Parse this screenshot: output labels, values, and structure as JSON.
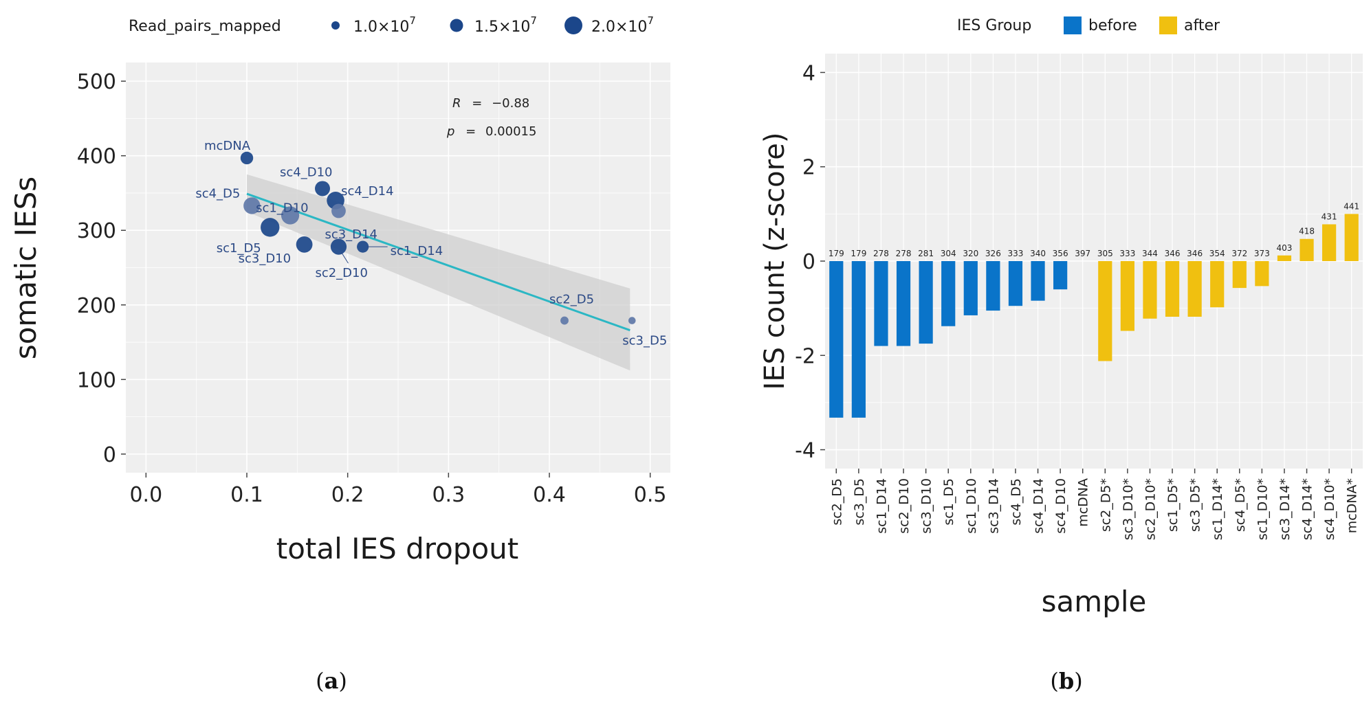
{
  "figure": {
    "caption_a": "a",
    "caption_b": "b"
  },
  "chart_data": [
    {
      "type": "scatter",
      "xlabel": "total IES dropout",
      "ylabel": "somatic IESs",
      "xlim": [
        -0.02,
        0.52
      ],
      "ylim": [
        -25,
        525
      ],
      "xticks": [
        0.0,
        0.1,
        0.2,
        0.3,
        0.4,
        0.5
      ],
      "xtick_labels": [
        "0.0",
        "0.1",
        "0.2",
        "0.3",
        "0.4",
        "0.5"
      ],
      "yticks": [
        0,
        100,
        200,
        300,
        400,
        500
      ],
      "ytick_labels": [
        "0",
        "100",
        "200",
        "300",
        "400",
        "500"
      ],
      "grid": true,
      "size_legend": {
        "title": "Read_pairs_mapped",
        "entries": [
          {
            "label": "1.0×10",
            "sup": "7",
            "value": 10000000
          },
          {
            "label": "1.5×10",
            "sup": "7",
            "value": 15000000
          },
          {
            "label": "2.0×10",
            "sup": "7",
            "value": 20000000
          }
        ],
        "placement": "top"
      },
      "annotations": {
        "r_label": "R",
        "r_value": "−0.88",
        "p_label": "p",
        "p_value": "0.00015"
      },
      "regression": {
        "x": [
          0.1,
          0.48
        ],
        "y": [
          349,
          166
        ],
        "ci_low": [
          325,
          112
        ],
        "ci_high": [
          375,
          222
        ],
        "color": "#2bb7c4"
      },
      "points": [
        {
          "label": "mcDNA",
          "x": 0.1,
          "y": 397,
          "size": 13000000
        },
        {
          "label": "sc4_D10",
          "x": 0.175,
          "y": 356,
          "size": 16000000
        },
        {
          "label": "sc4_D5",
          "x": 0.105,
          "y": 333,
          "size": 18000000
        },
        {
          "label": "sc1_D10",
          "x": 0.143,
          "y": 320,
          "size": 19500000
        },
        {
          "label": "sc4_D14",
          "x": 0.188,
          "y": 340,
          "size": 19000000
        },
        {
          "label": "sc3_D14",
          "x": 0.191,
          "y": 326,
          "size": 15000000
        },
        {
          "label": "sc1_D5",
          "x": 0.123,
          "y": 304,
          "size": 20500000
        },
        {
          "label": "sc3_D10",
          "x": 0.157,
          "y": 281,
          "size": 17500000
        },
        {
          "label": "sc2_D10",
          "x": 0.191,
          "y": 278,
          "size": 17000000
        },
        {
          "label": "sc1_D14",
          "x": 0.215,
          "y": 278,
          "size": 12000000
        },
        {
          "label": "sc2_D5",
          "x": 0.415,
          "y": 179,
          "size": 7500000
        },
        {
          "label": "sc3_D5",
          "x": 0.482,
          "y": 179,
          "size": 6500000
        }
      ]
    },
    {
      "type": "bar",
      "xlabel": "sample",
      "ylabel": "IES count (z-score)",
      "ylim": [
        -4.4,
        4.4
      ],
      "yticks": [
        -4,
        -2,
        0,
        2,
        4
      ],
      "ytick_labels": [
        "-4",
        "-2",
        "0",
        "2",
        "4"
      ],
      "grid": true,
      "legend": {
        "title": "IES Group",
        "entries": [
          {
            "name": "before",
            "color": "#0a74c9"
          },
          {
            "name": "after",
            "color": "#f0c010"
          }
        ],
        "placement": "top"
      },
      "categories": [
        "sc2_D5",
        "sc3_D5",
        "sc1_D14",
        "sc2_D10",
        "sc3_D10",
        "sc1_D5",
        "sc1_D10",
        "sc3_D14",
        "sc4_D5",
        "sc4_D14",
        "sc4_D10",
        "mcDNA",
        "sc2_D5*",
        "sc3_D10*",
        "sc2_D10*",
        "sc1_D5*",
        "sc3_D5*",
        "sc1_D14*",
        "sc4_D5*",
        "sc1_D10*",
        "sc3_D14*",
        "sc4_D14*",
        "sc4_D10*",
        "mcDNA*"
      ],
      "values": [
        -3.32,
        -3.32,
        -1.8,
        -1.8,
        -1.75,
        -1.38,
        -1.15,
        -1.05,
        -0.95,
        -0.84,
        -0.6,
        0.0,
        -2.12,
        -1.48,
        -1.22,
        -1.18,
        -1.18,
        -0.98,
        -0.57,
        -0.53,
        0.12,
        0.47,
        0.78,
        1.0
      ],
      "groups": [
        "before",
        "before",
        "before",
        "before",
        "before",
        "before",
        "before",
        "before",
        "before",
        "before",
        "before",
        "before",
        "after",
        "after",
        "after",
        "after",
        "after",
        "after",
        "after",
        "after",
        "after",
        "after",
        "after",
        "after"
      ],
      "data_labels": [
        "179",
        "179",
        "278",
        "278",
        "281",
        "304",
        "320",
        "326",
        "333",
        "340",
        "356",
        "397",
        "305",
        "333",
        "344",
        "346",
        "346",
        "354",
        "372",
        "373",
        "403",
        "418",
        "431",
        "441"
      ]
    }
  ]
}
